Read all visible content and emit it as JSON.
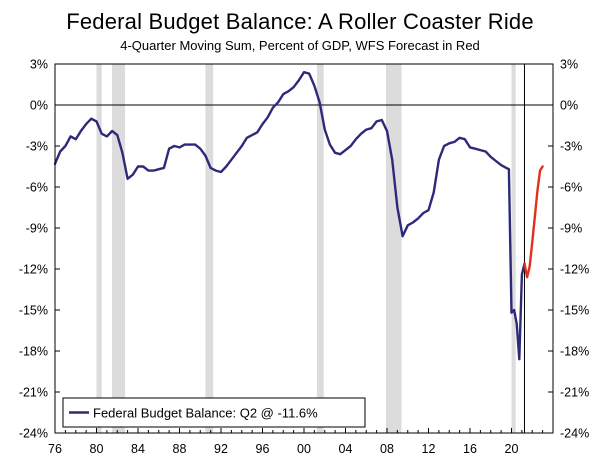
{
  "chart_data": {
    "type": "line",
    "title": "Federal Budget Balance: A Roller Coaster Ride",
    "subtitle": "4-Quarter Moving Sum, Percent of GDP, WFS Forecast in Red",
    "xlabel": "",
    "ylabel": "",
    "xlim": [
      1976,
      2024
    ],
    "ylim": [
      -24,
      3
    ],
    "y_ticks": [
      3,
      0,
      -3,
      -6,
      -9,
      -12,
      -15,
      -18,
      -21,
      -24
    ],
    "y_tick_labels": [
      "3%",
      "0%",
      "-3%",
      "-6%",
      "-9%",
      "-12%",
      "-15%",
      "-18%",
      "-21%",
      "-24%"
    ],
    "x_ticks": [
      1976,
      1980,
      1984,
      1988,
      1992,
      1996,
      2000,
      2004,
      2008,
      2012,
      2016,
      2020
    ],
    "x_tick_labels": [
      "76",
      "80",
      "84",
      "88",
      "92",
      "96",
      "00",
      "04",
      "08",
      "12",
      "16",
      "20"
    ],
    "recessions": [
      [
        1980.0,
        1980.5
      ],
      [
        1981.5,
        1982.75
      ],
      [
        1990.5,
        1991.25
      ],
      [
        2001.25,
        2001.9
      ],
      [
        2007.9,
        2009.4
      ],
      [
        2020.0,
        2020.4
      ]
    ],
    "reference_lines": [
      {
        "y": 0
      },
      {
        "x": 2021.25
      }
    ],
    "colors": {
      "actual": "#2e2a7a",
      "forecast": "#e0301e",
      "recession": "#dcdcdc"
    },
    "legend": {
      "position": "bottom-left",
      "label": "Federal Budget Balance: Q2 @ -11.6%"
    },
    "series": [
      {
        "name": "Federal Budget Balance: Q2 @ -11.6%",
        "x": [
          1976.0,
          1976.5,
          1977.0,
          1977.5,
          1978.0,
          1978.5,
          1979.0,
          1979.5,
          1980.0,
          1980.5,
          1981.0,
          1981.5,
          1982.0,
          1982.5,
          1983.0,
          1983.5,
          1984.0,
          1984.5,
          1985.0,
          1985.5,
          1986.0,
          1986.5,
          1987.0,
          1987.5,
          1988.0,
          1988.5,
          1989.0,
          1989.5,
          1990.0,
          1990.5,
          1991.0,
          1991.5,
          1992.0,
          1992.5,
          1993.0,
          1993.5,
          1994.0,
          1994.5,
          1995.0,
          1995.5,
          1996.0,
          1996.5,
          1997.0,
          1997.5,
          1998.0,
          1998.5,
          1999.0,
          1999.5,
          2000.0,
          2000.5,
          2001.0,
          2001.5,
          2002.0,
          2002.5,
          2003.0,
          2003.5,
          2004.0,
          2004.5,
          2005.0,
          2005.5,
          2006.0,
          2006.5,
          2007.0,
          2007.5,
          2008.0,
          2008.5,
          2009.0,
          2009.5,
          2010.0,
          2010.5,
          2011.0,
          2011.5,
          2012.0,
          2012.5,
          2013.0,
          2013.5,
          2014.0,
          2014.5,
          2015.0,
          2015.5,
          2016.0,
          2016.5,
          2017.0,
          2017.5,
          2018.0,
          2018.5,
          2019.0,
          2019.5,
          2019.75,
          2020.0,
          2020.25,
          2020.5,
          2020.75,
          2021.0,
          2021.25
        ],
        "values": [
          -4.3,
          -3.4,
          -3.0,
          -2.3,
          -2.5,
          -1.9,
          -1.4,
          -1.0,
          -1.2,
          -2.1,
          -2.3,
          -1.9,
          -2.2,
          -3.5,
          -5.4,
          -5.1,
          -4.5,
          -4.5,
          -4.8,
          -4.8,
          -4.7,
          -4.6,
          -3.2,
          -3.0,
          -3.1,
          -2.9,
          -2.9,
          -2.9,
          -3.2,
          -3.7,
          -4.6,
          -4.8,
          -4.9,
          -4.5,
          -4.0,
          -3.5,
          -3.0,
          -2.4,
          -2.2,
          -2.0,
          -1.4,
          -0.9,
          -0.2,
          0.2,
          0.8,
          1.0,
          1.3,
          1.8,
          2.4,
          2.3,
          1.4,
          0.2,
          -1.8,
          -2.9,
          -3.5,
          -3.6,
          -3.3,
          -3.0,
          -2.5,
          -2.1,
          -1.8,
          -1.7,
          -1.2,
          -1.1,
          -1.9,
          -4.0,
          -7.5,
          -9.6,
          -8.8,
          -8.6,
          -8.3,
          -7.9,
          -7.7,
          -6.4,
          -4.0,
          -3.0,
          -2.8,
          -2.7,
          -2.4,
          -2.5,
          -3.1,
          -3.2,
          -3.3,
          -3.4,
          -3.8,
          -4.1,
          -4.4,
          -4.6,
          -4.7,
          -15.2,
          -15.0,
          -16.0,
          -18.6,
          -12.4,
          -11.6
        ]
      },
      {
        "name": "WFS Forecast",
        "x": [
          2021.25,
          2021.5,
          2021.75,
          2022.0,
          2022.25,
          2022.5,
          2022.75,
          2023.0
        ],
        "values": [
          -11.6,
          -12.6,
          -11.8,
          -10.0,
          -8.2,
          -6.3,
          -4.8,
          -4.5
        ]
      }
    ]
  }
}
